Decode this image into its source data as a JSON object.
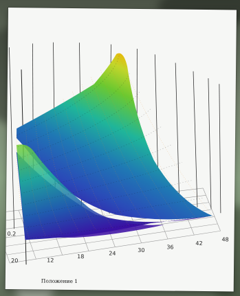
{
  "chart_data": {
    "type": "surface3d",
    "title": "",
    "xlabel": "Положение 1",
    "ylabel": "",
    "zlabel": "",
    "x_ticks": [
      "12",
      "18",
      "24",
      "30",
      "36",
      "42",
      "48"
    ],
    "y_ticks": [
      "20"
    ],
    "z_ticks": [
      "0.2"
    ],
    "x_range": [
      12,
      48
    ],
    "y_range": [
      20,
      60
    ],
    "z_range": [
      0,
      1
    ],
    "grid": true,
    "colormap": [
      "#3a0ca3",
      "#2a4ab8",
      "#1f78b4",
      "#1fb59a",
      "#6cc830",
      "#c3d62a",
      "#f4b000",
      "#f05000"
    ],
    "surface_samples": [
      {
        "x": 12,
        "y": 20,
        "z": 0.42
      },
      {
        "x": 12,
        "y": 60,
        "z": 1.0
      },
      {
        "x": 48,
        "y": 20,
        "z": 0.02
      },
      {
        "x": 48,
        "y": 60,
        "z": 0.1
      }
    ]
  }
}
